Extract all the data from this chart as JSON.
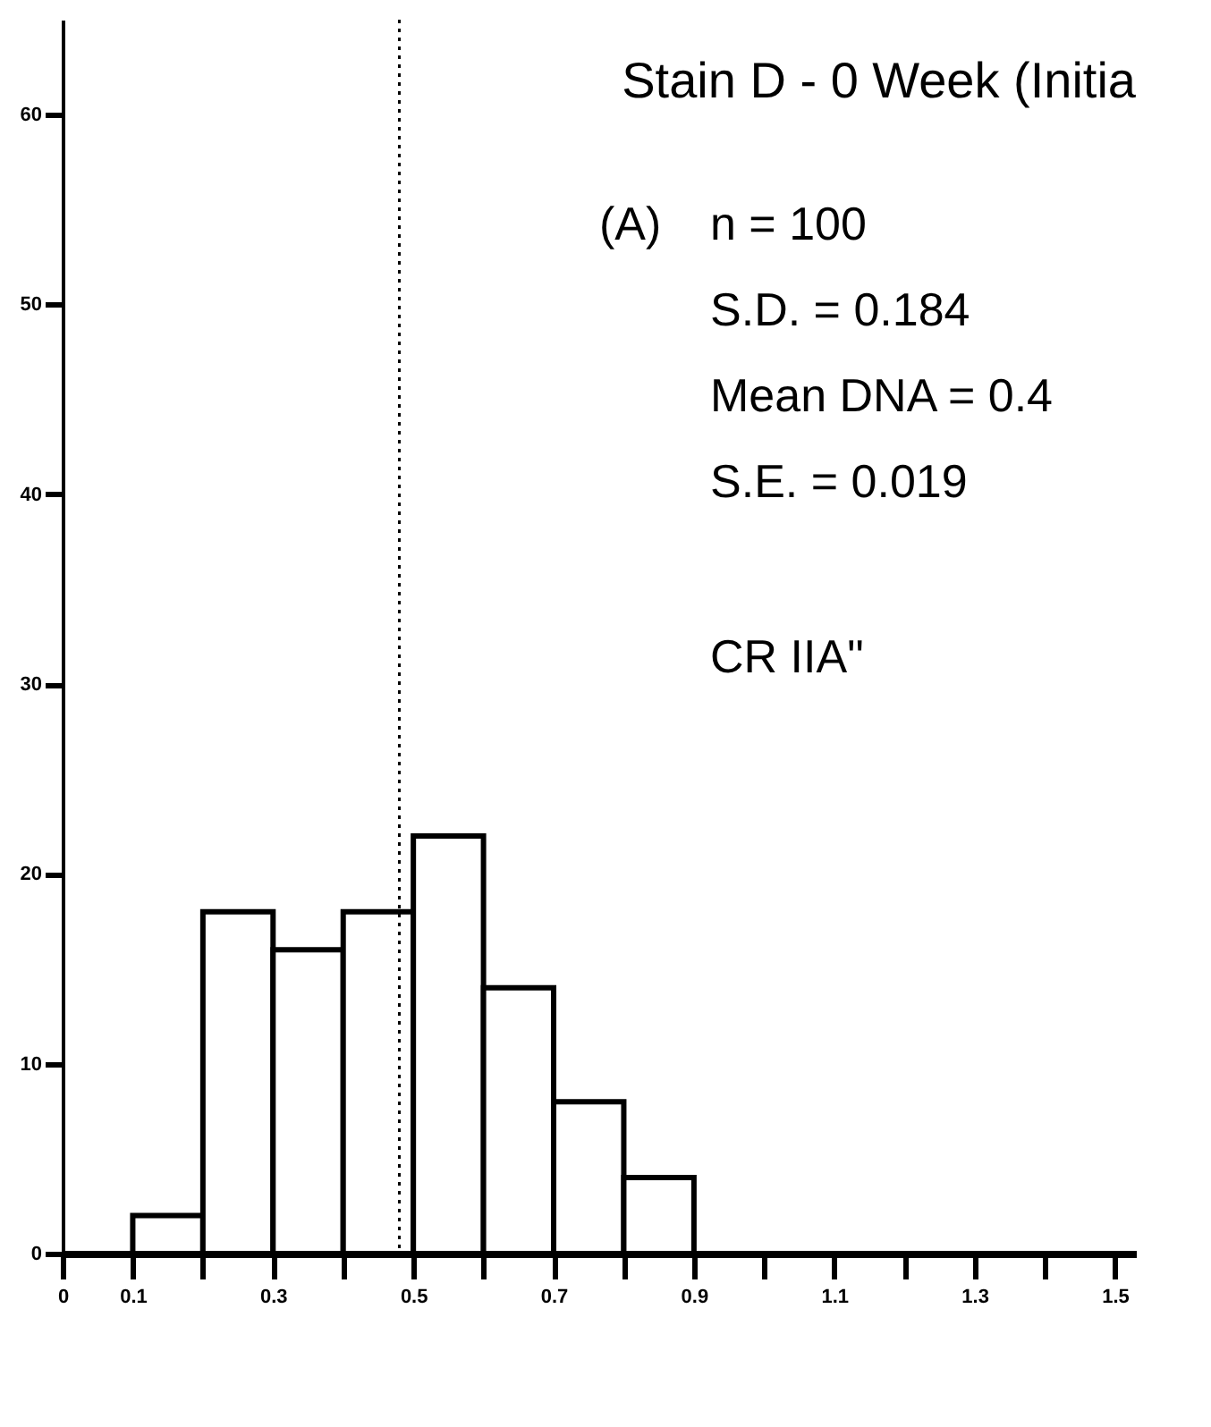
{
  "chart_data": {
    "type": "histogram",
    "title": "Stain D - 0 Week (Initia",
    "bins": [
      0.1,
      0.2,
      0.3,
      0.4,
      0.5,
      0.6,
      0.7,
      0.8,
      0.9
    ],
    "values": [
      2,
      18,
      16,
      18,
      22,
      14,
      8,
      4
    ],
    "color": "#000000",
    "xlim": [
      0,
      1.53
    ],
    "xticks": [
      0,
      0.1,
      {
        "value": 0.2,
        "label": null
      },
      0.3,
      {
        "value": 0.4,
        "label": null
      },
      0.5,
      {
        "value": 0.6,
        "label": null
      },
      0.7,
      {
        "value": 0.8,
        "label": null
      },
      0.9,
      {
        "value": 1.0,
        "label": null
      },
      1.1,
      {
        "value": 1.2,
        "label": null
      },
      1.3,
      {
        "value": 1.4,
        "label": null
      },
      1.5
    ],
    "ylim": [
      0,
      65
    ],
    "yticks": [
      0,
      10,
      20,
      30,
      40,
      50,
      60
    ],
    "grid": false,
    "ref_lines": [
      {
        "axis": "x",
        "value": 0.48,
        "line_style": "dotted",
        "color": "#000000"
      }
    ],
    "annotations": [
      "(A)",
      "n = 100",
      "S.D. = 0.184",
      "Mean DNA = 0.4",
      "S.E. = 0.019",
      "CR IIA\""
    ]
  }
}
